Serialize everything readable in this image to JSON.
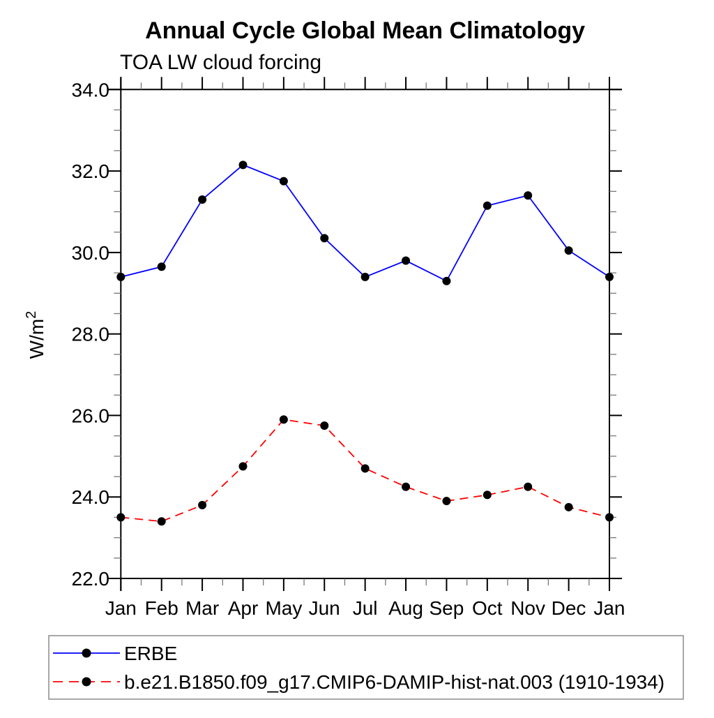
{
  "title": "Annual Cycle Global Mean Climatology",
  "subtitle": "TOA LW cloud forcing",
  "y_axis_unit": {
    "base": "W/m",
    "exp": "2"
  },
  "chart_data": {
    "type": "line",
    "title": "Annual Cycle Global Mean Climatology",
    "subtitle": "TOA LW cloud forcing",
    "ylabel": "W/m2",
    "xlabel": "",
    "grid": false,
    "legend_position": "bottom-left-box",
    "categories": [
      "Jan",
      "Feb",
      "Mar",
      "Apr",
      "May",
      "Jun",
      "Jul",
      "Aug",
      "Sep",
      "Oct",
      "Nov",
      "Dec",
      "Jan"
    ],
    "y_ticks": {
      "min": 22,
      "max": 34,
      "major": 2,
      "minor": 0.5
    },
    "y_tick_labels": [
      "34.0",
      "32.0",
      "30.0",
      "28.0",
      "26.0",
      "24.0",
      "22.0"
    ],
    "marker_color": "#000000",
    "series": [
      {
        "name": "ERBE",
        "color": "#0000ff",
        "style": "solid",
        "marker": "filled-circle",
        "values": [
          29.4,
          29.65,
          31.3,
          32.15,
          31.75,
          30.35,
          29.4,
          29.8,
          29.3,
          31.15,
          31.4,
          30.05,
          29.4
        ]
      },
      {
        "name": "b.e21.B1850.f09_g17.CMIP6-DAMIP-hist-nat.003 (1910-1934)",
        "color": "#ff0000",
        "style": "dashed",
        "marker": "filled-circle",
        "values": [
          23.5,
          23.4,
          23.8,
          24.75,
          25.9,
          25.75,
          24.7,
          24.25,
          23.9,
          24.05,
          24.25,
          23.75,
          23.5
        ]
      }
    ]
  }
}
